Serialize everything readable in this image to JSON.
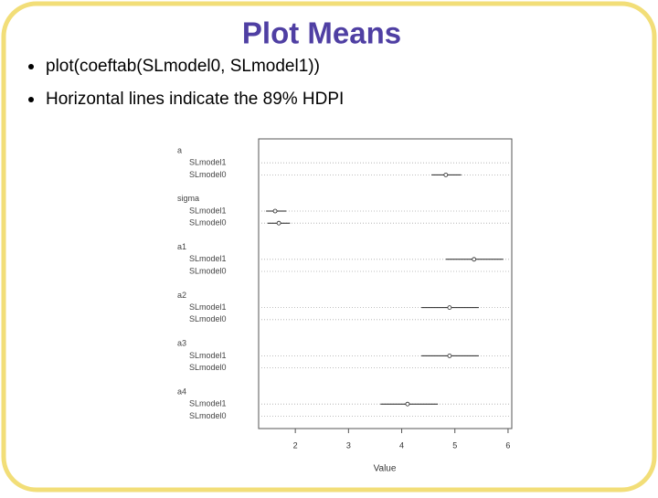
{
  "slide": {
    "title": "Plot Means",
    "bullets": [
      "plot(coeftab(SLmodel0, SLmodel1))",
      "Horizontal lines indicate the 89% HDPI"
    ]
  },
  "chart_data": {
    "type": "dotchart",
    "xlabel": "Value",
    "xlim": [
      1.31,
      6.07
    ],
    "xticks": [
      2,
      3,
      4,
      5,
      6
    ],
    "groups": [
      {
        "label": "a",
        "models": [
          "SLmodel1",
          "SLmodel0"
        ],
        "values": [
          null,
          4.83
        ],
        "lower": [
          null,
          4.56
        ],
        "upper": [
          null,
          5.12
        ]
      },
      {
        "label": "sigma",
        "models": [
          "SLmodel1",
          "SLmodel0"
        ],
        "values": [
          1.62,
          1.69
        ],
        "lower": [
          1.45,
          1.48
        ],
        "upper": [
          1.83,
          1.9
        ]
      },
      {
        "label": "a1",
        "models": [
          "SLmodel1",
          "SLmodel0"
        ],
        "values": [
          5.36,
          null
        ],
        "lower": [
          4.83,
          null
        ],
        "upper": [
          5.91,
          null
        ]
      },
      {
        "label": "a2",
        "models": [
          "SLmodel1",
          "SLmodel0"
        ],
        "values": [
          4.9,
          null
        ],
        "lower": [
          4.37,
          null
        ],
        "upper": [
          5.45,
          null
        ]
      },
      {
        "label": "a3",
        "models": [
          "SLmodel1",
          "SLmodel0"
        ],
        "values": [
          4.9,
          null
        ],
        "lower": [
          4.37,
          null
        ],
        "upper": [
          5.45,
          null
        ]
      },
      {
        "label": "a4",
        "models": [
          "SLmodel1",
          "SLmodel0"
        ],
        "values": [
          4.11,
          null
        ],
        "lower": [
          3.6,
          null
        ],
        "upper": [
          4.68,
          null
        ]
      }
    ]
  }
}
